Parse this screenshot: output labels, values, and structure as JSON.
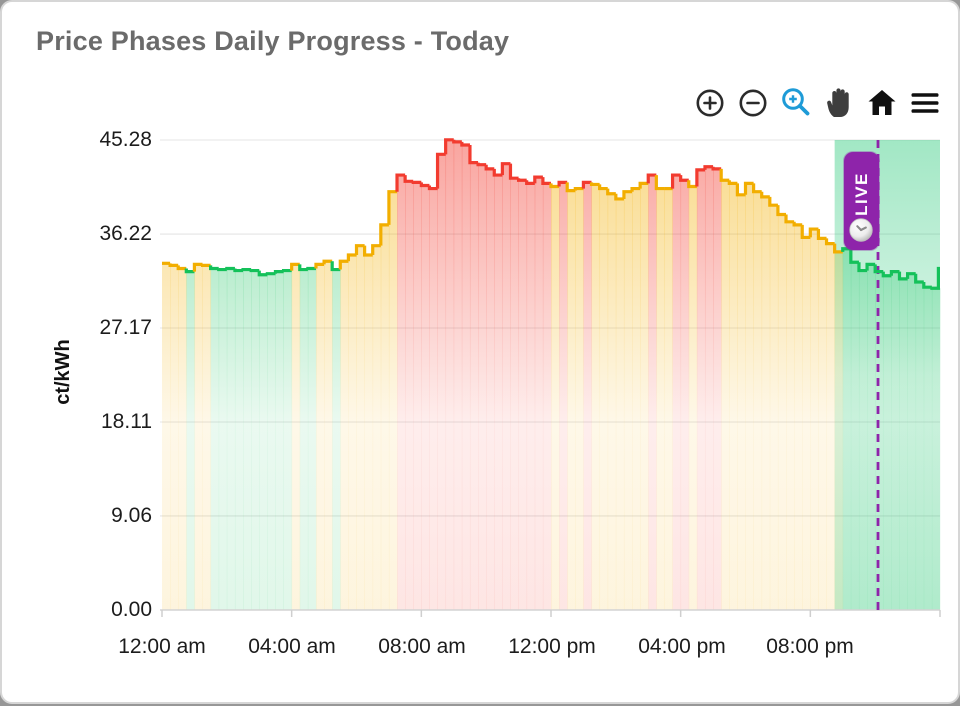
{
  "header": {
    "title": "Price Phases Daily Progress - Today"
  },
  "toolbar": {
    "icons": [
      {
        "name": "zoom-in",
        "active": false
      },
      {
        "name": "zoom-out",
        "active": false
      },
      {
        "name": "selection-zoom",
        "active": true,
        "active_color": "#1E9BD7"
      },
      {
        "name": "pan-hand",
        "active": false
      },
      {
        "name": "reset-home",
        "active": false
      },
      {
        "name": "menu",
        "active": false
      }
    ]
  },
  "live": {
    "label": "LIVE",
    "color": "#8E24AA"
  },
  "chart_data": {
    "type": "step-area",
    "title": "Price Phases Daily Progress - Today",
    "xlabel": "",
    "ylabel": "ct/kWh",
    "unit": "ct/kWh",
    "ylim": [
      0,
      45.28
    ],
    "grid": "horizontal",
    "step_minutes": 15,
    "y_ticks": {
      "labels": [
        "45.28",
        "36.22",
        "27.17",
        "18.11",
        "9.06",
        "0.00"
      ],
      "values": [
        45.28,
        36.22,
        27.17,
        18.11,
        9.06,
        0
      ]
    },
    "x_ticks": {
      "labels": [
        "12:00 am",
        "04:00 am",
        "08:00 am",
        "12:00 pm",
        "04:00 pm",
        "08:00 pm"
      ],
      "indices": [
        0,
        16,
        32,
        48,
        64,
        80
      ]
    },
    "phase_colors": {
      "g": "#14C15A",
      "y": "#F2AE00",
      "r": "#F23B2F"
    },
    "values": [
      33.4,
      33.2,
      32.9,
      32.6,
      33.3,
      33.2,
      32.9,
      32.8,
      32.9,
      32.7,
      32.8,
      32.7,
      32.3,
      32.4,
      32.6,
      32.7,
      33.3,
      32.8,
      32.9,
      33.3,
      33.6,
      32.8,
      33.6,
      34.2,
      35.1,
      34.2,
      35.1,
      37.1,
      40.3,
      41.9,
      41.3,
      41.2,
      40.9,
      40.6,
      43.9,
      45.3,
      45.1,
      44.8,
      43.1,
      42.9,
      42.5,
      41.9,
      43.0,
      41.6,
      41.4,
      41.1,
      41.7,
      41.1,
      40.8,
      41.2,
      40.4,
      40.6,
      41.2,
      41.0,
      40.6,
      40.1,
      39.6,
      40.3,
      40.6,
      41.1,
      41.9,
      40.6,
      40.6,
      41.9,
      41.4,
      40.8,
      42.4,
      42.7,
      42.5,
      41.4,
      41.1,
      40.0,
      41.1,
      40.3,
      39.8,
      39.0,
      38.1,
      37.4,
      37.1,
      35.9,
      36.7,
      35.8,
      35.3,
      34.5,
      34.8,
      33.5,
      32.7,
      33.3,
      32.6,
      32.2,
      32.6,
      31.9,
      32.4,
      31.6,
      31.1,
      31.0,
      32.9
    ],
    "phases": [
      "y",
      "y",
      "y",
      "g",
      "y",
      "y",
      "g",
      "g",
      "g",
      "g",
      "g",
      "g",
      "g",
      "g",
      "g",
      "g",
      "y",
      "g",
      "g",
      "y",
      "y",
      "g",
      "y",
      "y",
      "y",
      "y",
      "y",
      "y",
      "y",
      "r",
      "r",
      "r",
      "r",
      "r",
      "r",
      "r",
      "r",
      "r",
      "r",
      "r",
      "r",
      "r",
      "r",
      "r",
      "r",
      "r",
      "r",
      "r",
      "y",
      "r",
      "y",
      "y",
      "r",
      "y",
      "y",
      "y",
      "y",
      "y",
      "y",
      "y",
      "r",
      "y",
      "y",
      "r",
      "r",
      "y",
      "r",
      "r",
      "r",
      "y",
      "y",
      "y",
      "y",
      "y",
      "y",
      "y",
      "y",
      "y",
      "y",
      "y",
      "y",
      "y",
      "y",
      "y",
      "g",
      "g",
      "g",
      "g",
      "g",
      "g",
      "g",
      "g",
      "g",
      "g",
      "g",
      "g"
    ],
    "live_marker": {
      "label": "LIVE",
      "line_index": 88.35,
      "region_start_index": 83.0,
      "line_color": "#8E24AA",
      "region_color": "#2BC97A"
    }
  }
}
